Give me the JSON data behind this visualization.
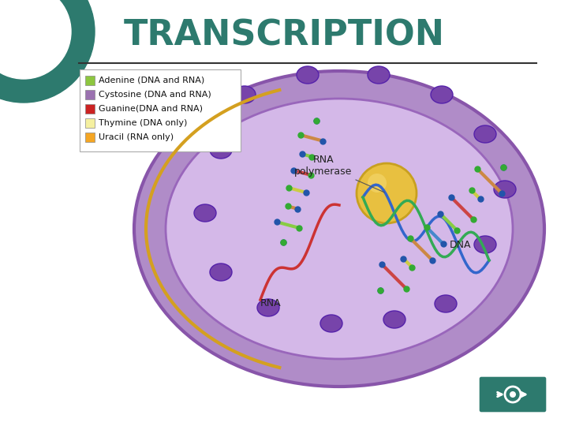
{
  "title": "TRANSCRIPTION",
  "title_color": "#2d7a6e",
  "title_fontsize": 32,
  "title_fontfamily": "Arial",
  "background_color": "#ffffff",
  "legend_items": [
    {
      "label": "Adenine (DNA and RNA)",
      "color": "#8dc63f"
    },
    {
      "label": "Cystosine (DNA and RNA)",
      "color": "#9b72b0"
    },
    {
      "label": "Guanine(DNA and RNA)",
      "color": "#cc2222"
    },
    {
      "label": "Thymine (DNA only)",
      "color": "#f5f0a0"
    },
    {
      "label": "Uracil (RNA only)",
      "color": "#f5a623"
    }
  ],
  "legend_box_color": "#ffffff",
  "legend_border_color": "#aaaaaa",
  "teal_circle_color": "#2d7a6e",
  "separator_line_color": "#333333",
  "nav_button_color": "#2d7a6e",
  "annotation_rna_polymerase": "RNA\npolymerase",
  "annotation_dna": "DNA",
  "annotation_rna": "RNA",
  "annotation_color": "#222222",
  "annotation_fontsize": 9
}
